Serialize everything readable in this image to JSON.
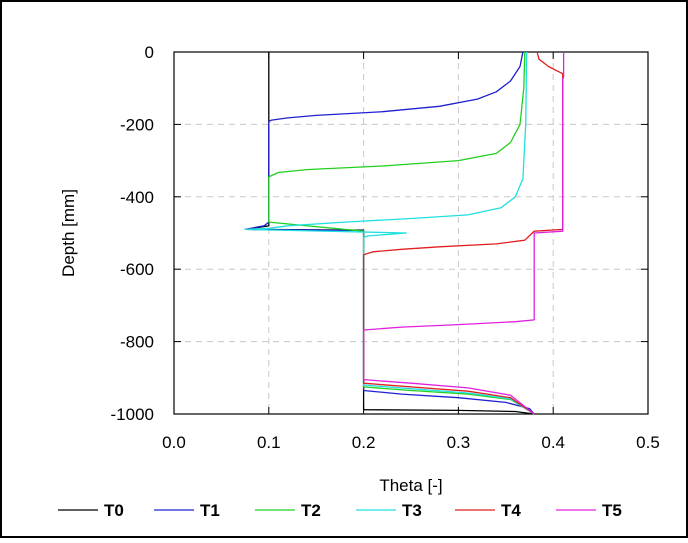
{
  "chart_data": {
    "type": "line",
    "title": "",
    "xlabel": "Theta [-]",
    "ylabel": "Depth [mm]",
    "xlim": [
      0.0,
      0.5
    ],
    "ylim": [
      -1000,
      0
    ],
    "xticks": [
      "0.0",
      "0.1",
      "0.2",
      "0.3",
      "0.4",
      "0.5"
    ],
    "yticks": [
      "0",
      "-200",
      "-400",
      "-600",
      "-800",
      "-1000"
    ],
    "grid": true,
    "legend_position": "bottom",
    "series": [
      {
        "name": "T0",
        "color": "#000000",
        "points": [
          [
            0.1,
            0
          ],
          [
            0.1,
            -480
          ],
          [
            0.075,
            -490
          ],
          [
            0.2,
            -492
          ],
          [
            0.2,
            -988
          ],
          [
            0.3,
            -990
          ],
          [
            0.36,
            -993
          ],
          [
            0.38,
            -1000
          ]
        ]
      },
      {
        "name": "T1",
        "color": "#2020d0",
        "points": [
          [
            0.368,
            0
          ],
          [
            0.365,
            -40
          ],
          [
            0.355,
            -80
          ],
          [
            0.34,
            -110
          ],
          [
            0.32,
            -130
          ],
          [
            0.28,
            -150
          ],
          [
            0.22,
            -165
          ],
          [
            0.15,
            -175
          ],
          [
            0.12,
            -182
          ],
          [
            0.103,
            -188
          ],
          [
            0.1,
            -192
          ],
          [
            0.1,
            -470
          ],
          [
            0.095,
            -480
          ],
          [
            0.075,
            -490
          ],
          [
            0.2,
            -493
          ],
          [
            0.2,
            -935
          ],
          [
            0.24,
            -945
          ],
          [
            0.3,
            -955
          ],
          [
            0.35,
            -968
          ],
          [
            0.375,
            -985
          ],
          [
            0.38,
            -1000
          ]
        ]
      },
      {
        "name": "T2",
        "color": "#20d020",
        "points": [
          [
            0.37,
            0
          ],
          [
            0.369,
            -100
          ],
          [
            0.365,
            -200
          ],
          [
            0.355,
            -250
          ],
          [
            0.34,
            -280
          ],
          [
            0.3,
            -300
          ],
          [
            0.22,
            -315
          ],
          [
            0.14,
            -325
          ],
          [
            0.11,
            -333
          ],
          [
            0.1,
            -345
          ],
          [
            0.1,
            -470
          ],
          [
            0.2,
            -495
          ],
          [
            0.2,
            -925
          ],
          [
            0.25,
            -935
          ],
          [
            0.31,
            -945
          ],
          [
            0.355,
            -960
          ],
          [
            0.38,
            -1000
          ]
        ]
      },
      {
        "name": "T3",
        "color": "#20e0e0",
        "points": [
          [
            0.372,
            0
          ],
          [
            0.371,
            -200
          ],
          [
            0.368,
            -350
          ],
          [
            0.36,
            -400
          ],
          [
            0.345,
            -430
          ],
          [
            0.31,
            -450
          ],
          [
            0.25,
            -460
          ],
          [
            0.18,
            -470
          ],
          [
            0.12,
            -480
          ],
          [
            0.1,
            -487
          ],
          [
            0.075,
            -490
          ],
          [
            0.245,
            -500
          ],
          [
            0.205,
            -508
          ],
          [
            0.2,
            -512
          ],
          [
            0.2,
            -920
          ],
          [
            0.25,
            -930
          ],
          [
            0.31,
            -942
          ],
          [
            0.355,
            -958
          ],
          [
            0.38,
            -1000
          ]
        ]
      },
      {
        "name": "T4",
        "color": "#e02020",
        "points": [
          [
            0.383,
            0
          ],
          [
            0.385,
            -20
          ],
          [
            0.395,
            -40
          ],
          [
            0.41,
            -60
          ],
          [
            0.41,
            -490
          ],
          [
            0.38,
            -495
          ],
          [
            0.378,
            -500
          ],
          [
            0.37,
            -520
          ],
          [
            0.34,
            -530
          ],
          [
            0.28,
            -538
          ],
          [
            0.24,
            -545
          ],
          [
            0.21,
            -552
          ],
          [
            0.2,
            -560
          ],
          [
            0.2,
            -915
          ],
          [
            0.25,
            -925
          ],
          [
            0.31,
            -937
          ],
          [
            0.355,
            -955
          ],
          [
            0.38,
            -1000
          ]
        ]
      },
      {
        "name": "T5",
        "color": "#e020e0",
        "points": [
          [
            0.411,
            0
          ],
          [
            0.411,
            -70
          ],
          [
            0.41,
            -75
          ],
          [
            0.41,
            -495
          ],
          [
            0.38,
            -500
          ],
          [
            0.38,
            -740
          ],
          [
            0.36,
            -745
          ],
          [
            0.3,
            -753
          ],
          [
            0.24,
            -760
          ],
          [
            0.2,
            -768
          ],
          [
            0.2,
            -905
          ],
          [
            0.25,
            -915
          ],
          [
            0.31,
            -928
          ],
          [
            0.355,
            -948
          ],
          [
            0.38,
            -1000
          ]
        ]
      }
    ]
  }
}
